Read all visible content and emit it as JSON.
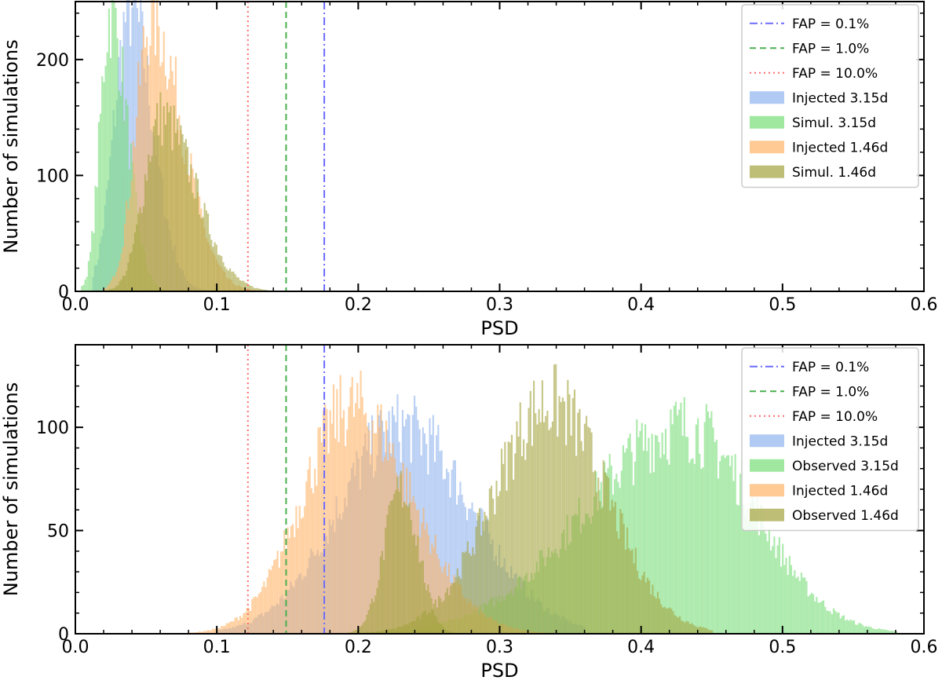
{
  "chart_data": [
    {
      "type": "histogram",
      "panel": "top",
      "xlabel": "PSD",
      "ylabel": "Number of simulations",
      "xlim": [
        0.0,
        0.6
      ],
      "ylim": [
        0,
        250
      ],
      "xticks": [
        "0.0",
        "0.1",
        "0.2",
        "0.3",
        "0.4",
        "0.5",
        "0.6"
      ],
      "yticks": [
        "0",
        "100",
        "200"
      ],
      "ytick_values": [
        0,
        100,
        200
      ],
      "grid": false,
      "legend_position": "top-right",
      "vlines": [
        {
          "label": "FAP =  0.1%",
          "x": 0.176,
          "color": "#6b6bff",
          "style": "dashdot"
        },
        {
          "label": "FAP =  1.0%",
          "x": 0.149,
          "color": "#4caf50",
          "style": "dashed"
        },
        {
          "label": "FAP = 10.0%",
          "x": 0.122,
          "color": "#ff6b6b",
          "style": "dotted"
        }
      ],
      "series": [
        {
          "name": "Injected 3.15d",
          "color": "#8fb3ee",
          "peak_x": 0.038,
          "peak_y": 245,
          "sigma_left": 0.011,
          "sigma_right": 0.016,
          "x_min": 0.012,
          "x_max": 0.15
        },
        {
          "name": "Simul. 3.15d",
          "color": "#77dd77",
          "peak_x": 0.024,
          "peak_y": 240,
          "sigma_left": 0.007,
          "sigma_right": 0.012,
          "x_min": 0.004,
          "x_max": 0.11
        },
        {
          "name": "Injected 1.46d",
          "color": "#ffb366",
          "peak_x": 0.053,
          "peak_y": 235,
          "sigma_left": 0.011,
          "sigma_right": 0.022,
          "x_min": 0.02,
          "x_max": 0.16
        },
        {
          "name": "Simul. 1.46d",
          "color": "#a3a33d",
          "peak_x": 0.06,
          "peak_y": 150,
          "sigma_left": 0.012,
          "sigma_right": 0.024,
          "x_min": 0.02,
          "x_max": 0.18
        }
      ]
    },
    {
      "type": "histogram",
      "panel": "bottom",
      "xlabel": "PSD",
      "ylabel": "Number of simulations",
      "xlim": [
        0.0,
        0.6
      ],
      "ylim": [
        0,
        140
      ],
      "xticks": [
        "0.0",
        "0.1",
        "0.2",
        "0.3",
        "0.4",
        "0.5",
        "0.6"
      ],
      "yticks": [
        "0",
        "50",
        "100"
      ],
      "ytick_values": [
        0,
        50,
        100
      ],
      "grid": false,
      "legend_position": "top-right",
      "vlines": [
        {
          "label": "FAP =  0.1%",
          "x": 0.176,
          "color": "#6b6bff",
          "style": "dashdot"
        },
        {
          "label": "FAP =  1.0%",
          "x": 0.149,
          "color": "#4caf50",
          "style": "dashed"
        },
        {
          "label": "FAP = 10.0%",
          "x": 0.122,
          "color": "#ff6b6b",
          "style": "dotted"
        }
      ],
      "series": [
        {
          "name": "Injected 3.15d",
          "color": "#8fb3ee",
          "peak_x": 0.23,
          "peak_y": 100,
          "sigma_left": 0.045,
          "sigma_right": 0.05,
          "x_min": 0.1,
          "x_max": 0.36
        },
        {
          "name": "Observed 3.15d",
          "color": "#77dd77",
          "peak_x": 0.43,
          "peak_y": 100,
          "sigma_left": 0.07,
          "sigma_right": 0.05,
          "x_min": 0.19,
          "x_max": 0.58
        },
        {
          "name": "Injected 1.46d",
          "color": "#ffb366",
          "peak_x": 0.195,
          "peak_y": 110,
          "sigma_left": 0.035,
          "sigma_right": 0.042,
          "x_min": 0.05,
          "x_max": 0.34
        },
        {
          "name": "Observed 1.46d",
          "color": "#a3a33d",
          "peak_x": 0.335,
          "peak_y": 112,
          "sigma_left": 0.04,
          "sigma_right": 0.04,
          "x_min": 0.2,
          "x_max": 0.45
        },
        {
          "name": "Observed 1.46d",
          "color": "#a3a33d",
          "peak_x": 0.23,
          "peak_y": 70,
          "sigma_left": 0.012,
          "sigma_right": 0.012,
          "x_min": 0.19,
          "x_max": 0.27
        }
      ]
    }
  ]
}
